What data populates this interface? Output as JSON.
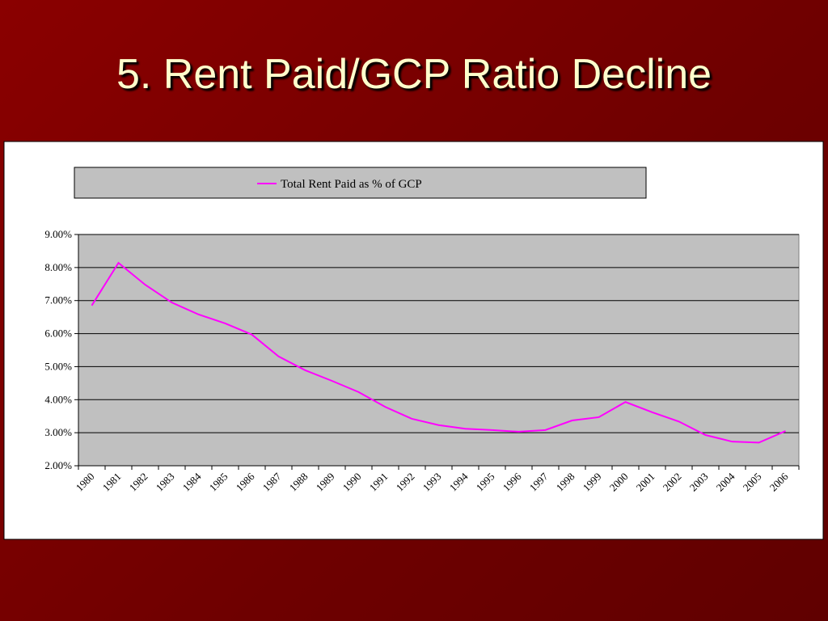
{
  "title": "5. Rent Paid/GCP Ratio Decline",
  "chart_data": {
    "type": "line",
    "categories": [
      "1980",
      "1981",
      "1982",
      "1983",
      "1984",
      "1985",
      "1986",
      "1987",
      "1988",
      "1989",
      "1990",
      "1991",
      "1992",
      "1993",
      "1994",
      "1995",
      "1996",
      "1997",
      "1998",
      "1999",
      "2000",
      "2001",
      "2002",
      "2003",
      "2004",
      "2005",
      "2006"
    ],
    "series": [
      {
        "name": "Total Rent Paid as % of GCP",
        "color": "#ff00ff",
        "values": [
          6.85,
          8.14,
          7.48,
          6.94,
          6.58,
          6.31,
          5.97,
          5.31,
          4.89,
          4.57,
          4.23,
          3.78,
          3.42,
          3.23,
          3.12,
          3.08,
          3.03,
          3.08,
          3.37,
          3.47,
          3.93,
          3.62,
          3.34,
          2.93,
          2.73,
          2.7,
          3.05
        ]
      }
    ],
    "ylim": [
      2,
      9
    ],
    "yticks": [
      {
        "value": 2,
        "label": "2.00%"
      },
      {
        "value": 3,
        "label": "3.00%"
      },
      {
        "value": 4,
        "label": "4.00%"
      },
      {
        "value": 5,
        "label": "5.00%"
      },
      {
        "value": 6,
        "label": "6.00%"
      },
      {
        "value": 7,
        "label": "7.00%"
      },
      {
        "value": 8,
        "label": "8.00%"
      },
      {
        "value": 9,
        "label": "9.00%"
      }
    ],
    "grid": true,
    "legend": "top"
  }
}
